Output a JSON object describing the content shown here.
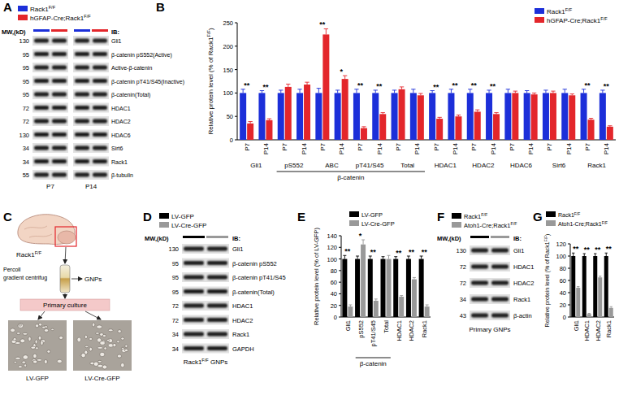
{
  "panel_labels": [
    "A",
    "B",
    "C",
    "D",
    "E",
    "F",
    "G"
  ],
  "blots": [
    {
      "legend": [
        {
          "name": "Rack1F/F",
          "color": "#1c2fd9"
        },
        {
          "name": "hGFAP-Cre;Rack1F/F",
          "color": "#e3262b"
        }
      ],
      "mw_title": "MW,(kD)",
      "ib": "IB:",
      "rows": [
        {
          "mw": 130,
          "label": "Gli1"
        },
        {
          "mw": 95,
          "label": "β-catenin pS552(Active)"
        },
        {
          "mw": 95,
          "label": "Active-β-catenin"
        },
        {
          "mw": 95,
          "label": "β-catenin pT41/S45(Inactive)"
        },
        {
          "mw": 95,
          "label": "β-catenin(Total)"
        },
        {
          "mw": 72,
          "label": "HDAC1"
        },
        {
          "mw": 72,
          "label": "HDAC2"
        },
        {
          "mw": 130,
          "label": "HDAC6"
        },
        {
          "mw": 34,
          "label": "Sirt6"
        },
        {
          "mw": 34,
          "label": "Rack1"
        },
        {
          "mw": 55,
          "label": "β-tubulin"
        }
      ],
      "lanes": [
        "P7",
        "P14"
      ]
    },
    {
      "legend": [
        {
          "name": "LV-GFP",
          "color": "#000000"
        },
        {
          "name": "LV-Cre-GFP",
          "color": "#999999"
        }
      ],
      "mw_title": "MW,(kD)",
      "ib": "IB:",
      "rows": [
        {
          "mw": 130,
          "label": "Gli1"
        },
        {
          "mw": 95,
          "label": "β-catenin pS552"
        },
        {
          "mw": 95,
          "label": "β-catenin pT41/S45"
        },
        {
          "mw": 95,
          "label": "β-catenin(Total)"
        },
        {
          "mw": 72,
          "label": "HDAC1"
        },
        {
          "mw": 72,
          "label": "HDAC2"
        },
        {
          "mw": 34,
          "label": "Rack1"
        },
        {
          "mw": 34,
          "label": "GAPDH"
        }
      ],
      "footer": "Rack1F/F GNPs"
    },
    {
      "legend": [
        {
          "name": "Rack1F/F",
          "color": "#000000"
        },
        {
          "name": "Atoh1-Cre;Rack1F/F",
          "color": "#999999"
        }
      ],
      "mw_title": "MW,(kD)",
      "ib": "IB:",
      "rows": [
        {
          "mw": 130,
          "label": "Gli1"
        },
        {
          "mw": 72,
          "label": "HDAC1"
        },
        {
          "mw": 72,
          "label": "HDAC2"
        },
        {
          "mw": 34,
          "label": "Rack1"
        },
        {
          "mw": 43,
          "label": "β-actin"
        }
      ],
      "footer": "Primary GNPs"
    }
  ],
  "diagram": {
    "strain": "Rack1F/F",
    "step1": [
      "Percoll",
      "gradient centrifug"
    ],
    "cells": "GNPs",
    "step2": "Primary culture",
    "images": [
      "LV-GFP",
      "LV-Cre-GFP"
    ]
  },
  "chart_data": [
    {
      "type": "bar",
      "y_label": "Relative protein level (% of Rack1F/F)",
      "categories": [
        "P7",
        "P14",
        "P7",
        "P14",
        "P7",
        "P14",
        "P7",
        "P14",
        "P7",
        "P14",
        "P7",
        "P14",
        "P7",
        "P14",
        "P7",
        "P14",
        "P7",
        "P14",
        "P7",
        "P14"
      ],
      "group_labels": [
        "Gli1",
        "pS552",
        "ABC",
        "pT41/S45",
        "Total",
        "HDAC1",
        "HDAC2",
        "HDAC6",
        "Sirt6",
        "Rack1"
      ],
      "bracket_label": "β-catenin",
      "bracket_groups": [
        "pS552",
        "ABC",
        "pT41/S45",
        "Total"
      ],
      "series": [
        {
          "name": "Rack1F/F",
          "color": "#1c2fd9",
          "values": [
            100,
            100,
            100,
            100,
            100,
            100,
            100,
            100,
            100,
            100,
            100,
            100,
            100,
            100,
            100,
            100,
            100,
            100,
            100,
            100
          ],
          "errors": [
            8,
            5,
            6,
            8,
            10,
            6,
            8,
            6,
            6,
            8,
            5,
            8,
            8,
            6,
            8,
            5,
            6,
            8,
            8,
            6
          ]
        },
        {
          "name": "hGFAP-Cre;Rack1F/F",
          "color": "#e3262b",
          "values": [
            35,
            42,
            113,
            118,
            225,
            130,
            25,
            55,
            108,
            95,
            45,
            50,
            60,
            55,
            100,
            97,
            100,
            95,
            43,
            28
          ],
          "errors": [
            4,
            3,
            6,
            5,
            12,
            7,
            3,
            3,
            5,
            4,
            3,
            3,
            4,
            3,
            4,
            3,
            4,
            3,
            3,
            2
          ]
        }
      ],
      "significance": [
        "**",
        "**",
        null,
        null,
        "**",
        "*",
        "**",
        "**",
        null,
        null,
        "**",
        "**",
        "**",
        "**",
        null,
        null,
        null,
        null,
        "**",
        "**"
      ],
      "ylim": [
        0,
        250
      ],
      "yticks": [
        0,
        50,
        100,
        150,
        200,
        250
      ],
      "grid": false,
      "legend": "upper right"
    },
    {
      "type": "bar",
      "y_label": "Relative protein level (% of LV-GFP)",
      "categories": [
        "Gli1",
        "pS552",
        "pT41/S45",
        "Total",
        "HDAC1",
        "HDAC2",
        "Rack1"
      ],
      "bracket_label": "β-catenin",
      "bracket_groups": [
        "pS552",
        "pT41/S45",
        "Total"
      ],
      "series": [
        {
          "name": "LV-GFP",
          "color": "#000000",
          "values": [
            100,
            100,
            100,
            100,
            100,
            100,
            100
          ],
          "errors": [
            6,
            5,
            5,
            4,
            4,
            5,
            5
          ]
        },
        {
          "name": "LV-Cre-GFP",
          "color": "#999999",
          "values": [
            18,
            125,
            28,
            100,
            35,
            65,
            18
          ],
          "errors": [
            3,
            8,
            3,
            6,
            2,
            3,
            3
          ]
        }
      ],
      "significance": [
        "**",
        "*",
        "**",
        null,
        "**",
        "**",
        "**"
      ],
      "ylim": [
        0,
        140
      ],
      "yticks": [
        0,
        20,
        40,
        60,
        80,
        100,
        120,
        140
      ],
      "grid": false,
      "legend": "top"
    },
    {
      "type": "bar",
      "y_label": "Relative protein level (% of Rack1F/F)",
      "categories": [
        "Gli1",
        "HDAC1",
        "HDAC2",
        "Rack1"
      ],
      "series": [
        {
          "name": "Rack1F/F",
          "color": "#000000",
          "values": [
            100,
            100,
            100,
            100
          ],
          "errors": [
            5,
            4,
            4,
            5
          ]
        },
        {
          "name": "Atoh1-Cre;Rack1F/F",
          "color": "#999999",
          "values": [
            48,
            5,
            65,
            15
          ],
          "errors": [
            2,
            1,
            2,
            2
          ]
        }
      ],
      "significance": [
        "**",
        "**",
        "**",
        "**"
      ],
      "ylim": [
        0,
        120
      ],
      "yticks": [
        0,
        20,
        40,
        60,
        80,
        100,
        120
      ],
      "grid": false,
      "legend": "top"
    }
  ]
}
